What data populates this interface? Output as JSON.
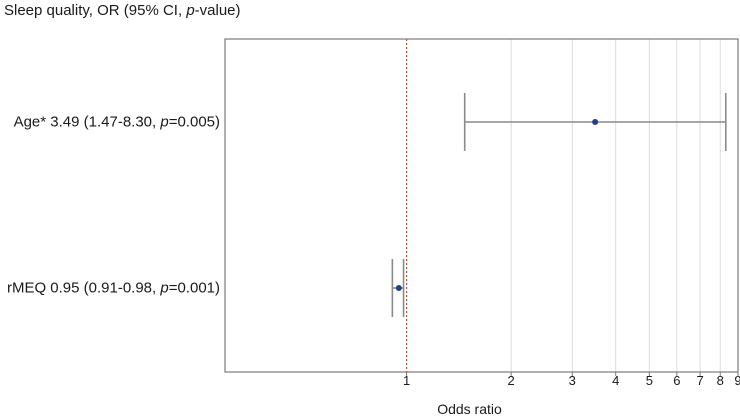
{
  "header": {
    "title_prefix": "Sleep quality, OR (95% CI, ",
    "title_italic": "p",
    "title_suffix": "-value)"
  },
  "rows": [
    {
      "label_pre": "Age* 3.49 (1.47-8.30, ",
      "label_p": "p",
      "label_post": "=0.005)"
    },
    {
      "label_pre": "rMEQ 0.95 (0.91-0.98, ",
      "label_p": "p",
      "label_post": "=0.001)"
    }
  ],
  "chart_data": {
    "type": "forest",
    "title": "Sleep quality, OR (95% CI, p-value)",
    "xlabel": "Odds ratio",
    "x_scale": "log",
    "xlim": [
      0.3,
      9
    ],
    "x_ticks": [
      1,
      2,
      3,
      4,
      5,
      6,
      7,
      8,
      9
    ],
    "x_tick_labels": [
      "1",
      "2",
      "3",
      "4",
      "5",
      "6",
      "7",
      "8",
      "9"
    ],
    "reference_line": 1,
    "grid": true,
    "points": [
      {
        "label": "Age*",
        "or": 3.49,
        "ci_low": 1.47,
        "ci_high": 8.3,
        "p_value": 0.005
      },
      {
        "label": "rMEQ",
        "or": 0.95,
        "ci_low": 0.91,
        "ci_high": 0.98,
        "p_value": 0.001
      }
    ],
    "colors": {
      "marker": "#1f3f8f",
      "whisker": "#8a8a8a",
      "reference": "#b5523b",
      "grid": "#dcdcdc",
      "frame": "#7a7a7a"
    }
  }
}
